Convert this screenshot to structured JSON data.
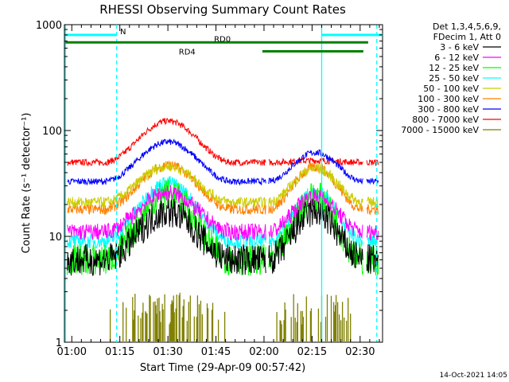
{
  "chart_data": {
    "type": "line",
    "title": "RHESSI Observing Summary Count Rates",
    "xlabel": "Start Time (29-Apr-09 00:57:42)",
    "ylabel": "Count Rate (s⁻¹ detector⁻¹)",
    "y_scale": "log",
    "ylim": [
      1,
      1000
    ],
    "xlim_minutes": [
      57.7,
      157.0
    ],
    "x_ticks": [
      {
        "label": "01:00",
        "minute": 60
      },
      {
        "label": "01:15",
        "minute": 75
      },
      {
        "label": "01:30",
        "minute": 90
      },
      {
        "label": "01:45",
        "minute": 105
      },
      {
        "label": "02:00",
        "minute": 120
      },
      {
        "label": "02:15",
        "minute": 135
      },
      {
        "label": "02:30",
        "minute": 150
      }
    ],
    "y_ticks": [
      {
        "label": "1",
        "value": 1
      },
      {
        "label": "10",
        "value": 10
      },
      {
        "label": "100",
        "value": 100
      },
      {
        "label": "1000",
        "value": 1000
      }
    ],
    "legend_header": [
      "Det 1,3,4,5,6,9,",
      "FDecim 1, Att 0"
    ],
    "legend_position": "right",
    "series": [
      {
        "name": "3 - 6 keV",
        "color": "#000000",
        "shape": "arch",
        "baseline": 6.0,
        "peak1": 17,
        "peak2": 17,
        "noise": 0.15
      },
      {
        "name": "6 - 12 keV",
        "color": "#ff00ff",
        "shape": "arch",
        "baseline": 11.0,
        "peak1": 26,
        "peak2": 24,
        "noise": 0.08
      },
      {
        "name": "12 - 25 keV",
        "color": "#00ff00",
        "shape": "arch",
        "baseline": 6.0,
        "peak1": 25,
        "peak2": 24,
        "noise": 0.15
      },
      {
        "name": "25 - 50 keV",
        "color": "#00ffff",
        "shape": "arch",
        "baseline": 9.0,
        "peak1": 32,
        "peak2": 26,
        "noise": 0.07
      },
      {
        "name": "50 - 100 keV",
        "color": "#cccc00",
        "shape": "arch",
        "baseline": 21.0,
        "peak1": 46,
        "peak2": 44,
        "noise": 0.05
      },
      {
        "name": "100 - 300 keV",
        "color": "#ff8000",
        "shape": "arch",
        "baseline": 18.0,
        "peak1": 47,
        "peak2": 45,
        "noise": 0.05
      },
      {
        "name": "300 - 800 keV",
        "color": "#0000ff",
        "shape": "arch",
        "baseline": 33.0,
        "peak1": 78,
        "peak2": 62,
        "noise": 0.03
      },
      {
        "name": "800 - 7000 keV",
        "color": "#ff0000",
        "shape": "arch",
        "baseline": 50.0,
        "peak1": 123,
        "peak2": 52,
        "noise": 0.03
      },
      {
        "name": "7000 - 15000 keV",
        "color": "#808000",
        "shape": "spikes",
        "baseline": 1.0,
        "peak1": 3.0,
        "peak2": 3.0,
        "noise": 0.0
      }
    ],
    "data_gaps_minutes": [
      [
        57.7,
        58.5
      ],
      [
        120.6,
        121.4
      ],
      [
        151.0,
        152.0
      ],
      [
        155.8,
        157.0
      ]
    ],
    "orbit_windows_minutes": [
      [
        70,
        110
      ],
      [
        121,
        151
      ]
    ],
    "vertical_markers": [
      {
        "minute": 58.0,
        "color": "#00ffff",
        "style": "solid"
      },
      {
        "minute": 74.0,
        "color": "#00ffff",
        "style": "dashed"
      },
      {
        "minute": 138.0,
        "color": "#00ffff",
        "style": "solid"
      },
      {
        "minute": 155.2,
        "color": "#00ffff",
        "style": "dashed"
      }
    ],
    "annotation_bars": [
      {
        "label": "N",
        "color": "#00ffff",
        "level": 800,
        "start": 58.0,
        "end": 74.0
      },
      {
        "label": "",
        "color": "#00ffff",
        "level": 800,
        "start": 138.0,
        "end": 157.0
      },
      {
        "label": "RD0",
        "color": "#008000",
        "level": 680,
        "start": 58.0,
        "end": 152.5
      },
      {
        "label": "RD4",
        "color": "#008000",
        "level": 560,
        "start": 119.5,
        "end": 151.0
      }
    ]
  },
  "timestamp": "14-Oct-2021 14:05"
}
